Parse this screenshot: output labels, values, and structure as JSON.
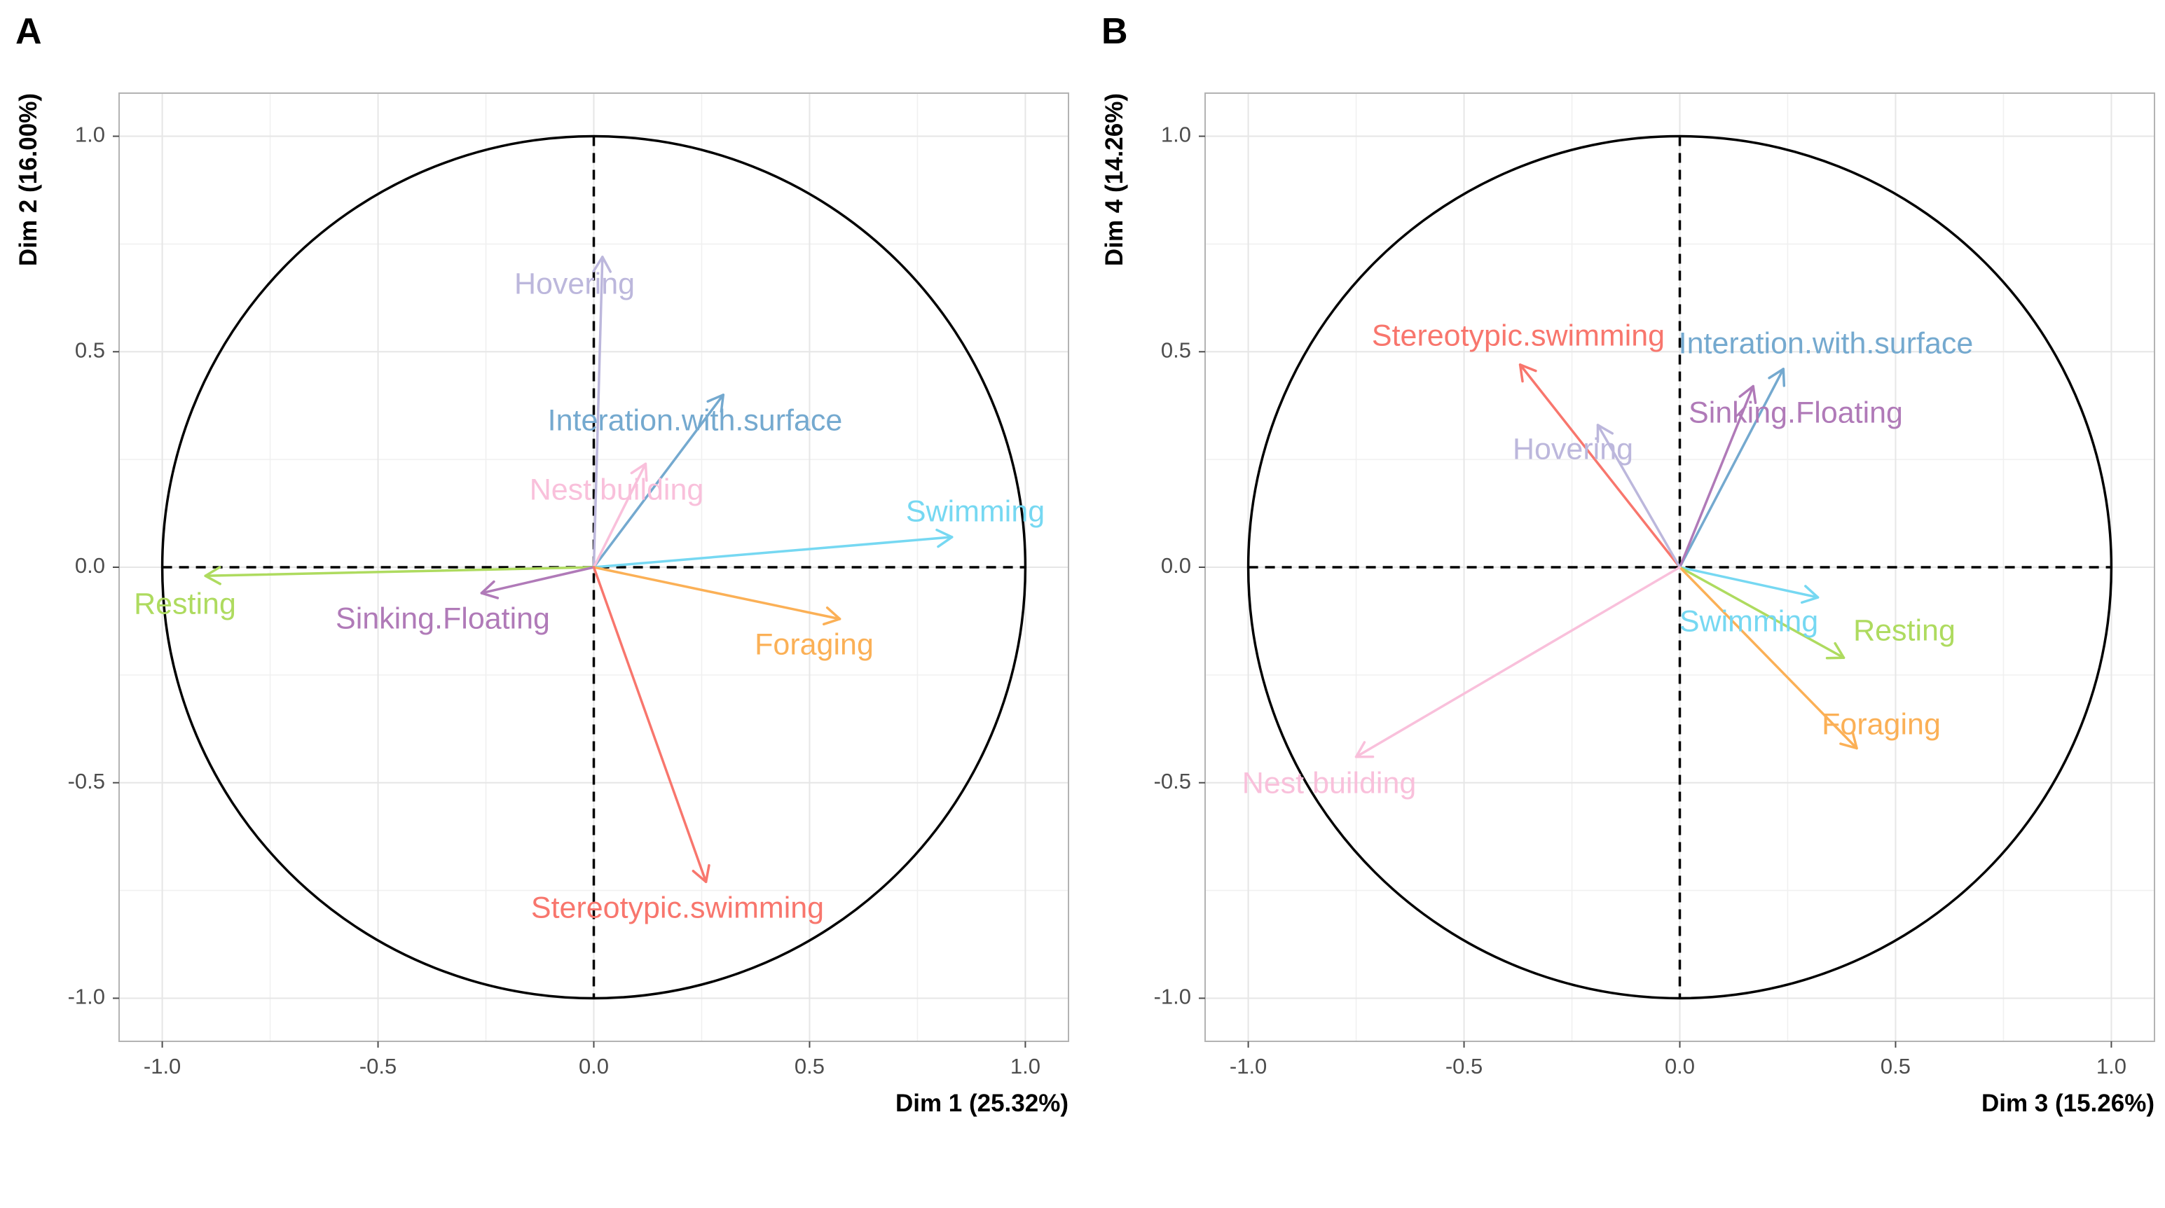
{
  "colors": {
    "Stereotypic.swimming": "#F8766D",
    "Interation.with.surface": "#74A9CF",
    "Sinking.Floating": "#B07AB8",
    "Hovering": "#BCB7DC",
    "Nest building": "#F9C0DB",
    "Swimming": "#76D8F2",
    "Resting": "#AEDB5F",
    "Foraging": "#FBB056"
  },
  "chart_data": [
    {
      "type": "scatter",
      "panel_label": "A",
      "xlabel": "Dim 1 (25.32%)",
      "ylabel": "Dim 2 (16.00%)",
      "xlim": [
        -1.1,
        1.1
      ],
      "ylim": [
        -1.1,
        1.1
      ],
      "x_ticks": [
        "-1.0",
        "-0.5",
        "0.0",
        "0.5",
        "1.0"
      ],
      "y_ticks": [
        "-1.0",
        "-0.5",
        "0.0",
        "0.5",
        "1.0"
      ],
      "grid": true,
      "series": [
        {
          "name": "Hovering",
          "x": 0.02,
          "y": 0.72
        },
        {
          "name": "Interation.with.surface",
          "x": 0.3,
          "y": 0.4
        },
        {
          "name": "Nest building",
          "x": 0.12,
          "y": 0.24
        },
        {
          "name": "Swimming",
          "x": 0.83,
          "y": 0.07
        },
        {
          "name": "Resting",
          "x": -0.9,
          "y": -0.02
        },
        {
          "name": "Sinking.Floating",
          "x": -0.26,
          "y": -0.06
        },
        {
          "name": "Foraging",
          "x": 0.57,
          "y": -0.12
        },
        {
          "name": "Stereotypic.swimming",
          "x": 0.26,
          "y": -0.73
        }
      ]
    },
    {
      "type": "scatter",
      "panel_label": "B",
      "xlabel": "Dim 3 (15.26%)",
      "ylabel": "Dim 4 (14.26%)",
      "xlim": [
        -1.1,
        1.1
      ],
      "ylim": [
        -1.1,
        1.1
      ],
      "x_ticks": [
        "-1.0",
        "-0.5",
        "0.0",
        "0.5",
        "1.0"
      ],
      "y_ticks": [
        "-1.0",
        "-0.5",
        "0.0",
        "0.5",
        "1.0"
      ],
      "grid": true,
      "series": [
        {
          "name": "Stereotypic.swimming",
          "x": -0.37,
          "y": 0.47
        },
        {
          "name": "Interation.with.surface",
          "x": 0.24,
          "y": 0.46
        },
        {
          "name": "Sinking.Floating",
          "x": 0.17,
          "y": 0.42
        },
        {
          "name": "Hovering",
          "x": -0.19,
          "y": 0.33
        },
        {
          "name": "Swimming",
          "x": 0.32,
          "y": -0.07
        },
        {
          "name": "Resting",
          "x": 0.38,
          "y": -0.21
        },
        {
          "name": "Foraging",
          "x": 0.41,
          "y": -0.42
        },
        {
          "name": "Nest building",
          "x": -0.75,
          "y": -0.44
        }
      ]
    }
  ]
}
